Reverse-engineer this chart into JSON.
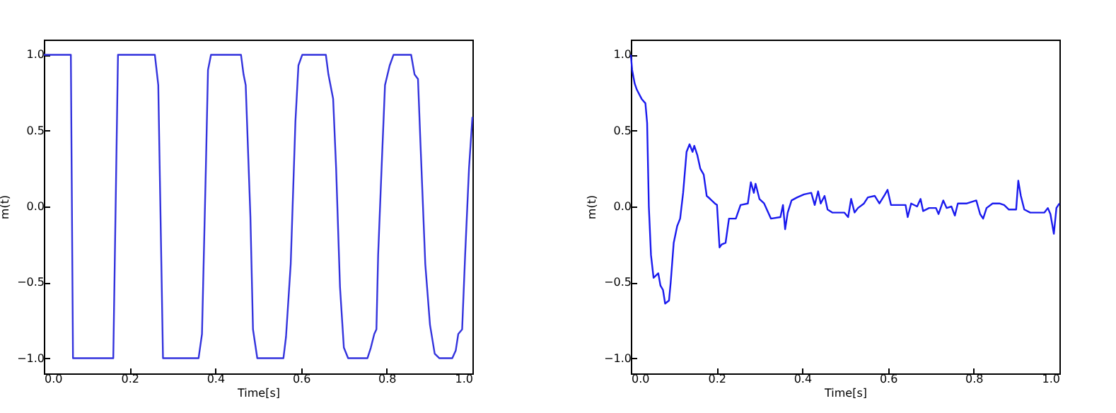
{
  "chart_data": [
    {
      "type": "line",
      "xlabel": "Time[s]",
      "ylabel": "m(t)",
      "xlim": [
        0,
        1
      ],
      "ylim": [
        -1.1,
        1.1
      ],
      "xticks": [
        {
          "value": 0,
          "label": "0.0"
        },
        {
          "value": 0.2,
          "label": "0.2"
        },
        {
          "value": 0.4,
          "label": "0.4"
        },
        {
          "value": 0.6,
          "label": "0.6"
        },
        {
          "value": 0.8,
          "label": "0.8"
        },
        {
          "value": 1,
          "label": "1.0"
        }
      ],
      "yticks": [
        {
          "value": -1,
          "label": "−1.0"
        },
        {
          "value": -0.5,
          "label": "−0.5"
        },
        {
          "value": 0,
          "label": "0.0"
        },
        {
          "value": 0.5,
          "label": "0.5"
        },
        {
          "value": 1,
          "label": "1.0"
        }
      ],
      "series": [
        {
          "color": "#3333dd",
          "x": [
            0,
            0.063,
            0.068,
            0.162,
            0.173,
            0.259,
            0.267,
            0.278,
            0.361,
            0.369,
            0.378,
            0.383,
            0.39,
            0.46,
            0.466,
            0.471,
            0.482,
            0.488,
            0.498,
            0.559,
            0.565,
            0.576,
            0.587,
            0.594,
            0.603,
            0.658,
            0.664,
            0.675,
            0.682,
            0.691,
            0.7,
            0.71,
            0.755,
            0.763,
            0.771,
            0.776,
            0.78,
            0.788,
            0.796,
            0.807,
            0.816,
            0.857,
            0.865,
            0.873,
            0.879,
            0.89,
            0.901,
            0.912,
            0.923,
            0.953,
            0.961,
            0.967,
            0.976,
            0.983,
            0.992,
            1.0
          ],
          "values": [
            1,
            1,
            -1,
            -1,
            1,
            1,
            0.8,
            -1,
            -1,
            -0.84,
            0.25,
            0.9,
            1,
            1,
            0.87,
            0.8,
            -0.07,
            -0.81,
            -1,
            -1,
            -0.86,
            -0.38,
            0.56,
            0.93,
            1,
            1,
            0.87,
            0.71,
            0.25,
            -0.53,
            -0.93,
            -1,
            -1,
            -0.93,
            -0.84,
            -0.81,
            -0.32,
            0.25,
            0.8,
            0.93,
            1,
            1,
            0.87,
            0.84,
            0.4,
            -0.38,
            -0.78,
            -0.97,
            -1,
            -1,
            -0.95,
            -0.84,
            -0.81,
            -0.32,
            0.25,
            0.59
          ]
        }
      ]
    },
    {
      "type": "line",
      "xlabel": "Time[s]",
      "ylabel": "m(t)",
      "xlim": [
        0,
        1
      ],
      "ylim": [
        -1.1,
        1.1
      ],
      "xticks": [
        {
          "value": 0,
          "label": "0.0"
        },
        {
          "value": 0.2,
          "label": "0.2"
        },
        {
          "value": 0.4,
          "label": "0.4"
        },
        {
          "value": 0.6,
          "label": "0.6"
        },
        {
          "value": 0.8,
          "label": "0.8"
        },
        {
          "value": 1,
          "label": "1.0"
        }
      ],
      "yticks": [
        {
          "value": -1,
          "label": "−1.0"
        },
        {
          "value": -0.5,
          "label": "−0.5"
        },
        {
          "value": 0,
          "label": "0.0"
        },
        {
          "value": 0.5,
          "label": "0.5"
        },
        {
          "value": 1,
          "label": "1.0"
        }
      ],
      "series": [
        {
          "color": "#1a1aee",
          "x": [
            0,
            0.003,
            0.009,
            0.014,
            0.025,
            0.034,
            0.038,
            0.042,
            0.047,
            0.053,
            0.064,
            0.069,
            0.075,
            0.08,
            0.089,
            0.093,
            0.1,
            0.108,
            0.115,
            0.122,
            0.13,
            0.137,
            0.144,
            0.148,
            0.155,
            0.162,
            0.17,
            0.177,
            0.185,
            0.196,
            0.201,
            0.207,
            0.212,
            0.221,
            0.229,
            0.245,
            0.256,
            0.273,
            0.28,
            0.287,
            0.291,
            0.3,
            0.311,
            0.327,
            0.349,
            0.355,
            0.36,
            0.366,
            0.375,
            0.388,
            0.404,
            0.421,
            0.429,
            0.437,
            0.443,
            0.452,
            0.459,
            0.47,
            0.498,
            0.507,
            0.514,
            0.522,
            0.53,
            0.544,
            0.553,
            0.569,
            0.58,
            0.591,
            0.599,
            0.607,
            0.619,
            0.641,
            0.646,
            0.654,
            0.668,
            0.676,
            0.682,
            0.696,
            0.712,
            0.718,
            0.729,
            0.737,
            0.748,
            0.756,
            0.763,
            0.784,
            0.806,
            0.815,
            0.822,
            0.83,
            0.844,
            0.86,
            0.871,
            0.882,
            0.899,
            0.904,
            0.91,
            0.918,
            0.932,
            0.965,
            0.973,
            0.979,
            0.987,
            0.993,
            1.0
          ],
          "values": [
            1.0,
            0.9,
            0.81,
            0.77,
            0.71,
            0.68,
            0.55,
            0.0,
            -0.32,
            -0.47,
            -0.44,
            -0.52,
            -0.55,
            -0.64,
            -0.62,
            -0.5,
            -0.24,
            -0.13,
            -0.08,
            0.09,
            0.36,
            0.41,
            0.36,
            0.4,
            0.34,
            0.25,
            0.21,
            0.07,
            0.05,
            0.02,
            0.01,
            -0.27,
            -0.25,
            -0.24,
            -0.08,
            -0.08,
            0.01,
            0.02,
            0.16,
            0.09,
            0.15,
            0.05,
            0.02,
            -0.08,
            -0.07,
            0.01,
            -0.15,
            -0.04,
            0.04,
            0.06,
            0.08,
            0.09,
            0.01,
            0.1,
            0.02,
            0.07,
            -0.02,
            -0.04,
            -0.04,
            -0.07,
            0.05,
            -0.04,
            -0.01,
            0.02,
            0.06,
            0.07,
            0.02,
            0.07,
            0.11,
            0.01,
            0.01,
            0.01,
            -0.07,
            0.02,
            0.0,
            0.05,
            -0.03,
            -0.01,
            -0.01,
            -0.05,
            0.04,
            -0.01,
            0.0,
            -0.06,
            0.02,
            0.02,
            0.04,
            -0.05,
            -0.08,
            -0.01,
            0.02,
            0.02,
            0.01,
            -0.02,
            -0.02,
            0.17,
            0.07,
            -0.02,
            -0.04,
            -0.04,
            -0.01,
            -0.05,
            -0.18,
            -0.01,
            0.02
          ]
        }
      ]
    }
  ]
}
